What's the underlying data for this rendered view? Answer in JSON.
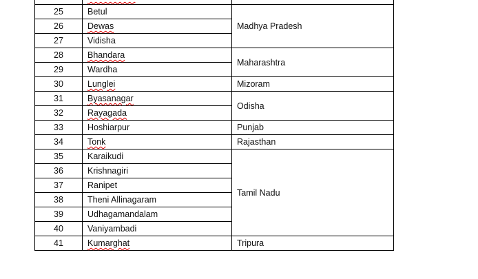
{
  "table": {
    "rows": [
      {
        "num": "",
        "district": "",
        "misspelled": true,
        "state": ""
      },
      {
        "num": "25",
        "district": "Betul",
        "misspelled": false,
        "state": "Madhya Pradesh",
        "span": 3
      },
      {
        "num": "26",
        "district": "Dewas",
        "misspelled": true
      },
      {
        "num": "27",
        "district": "Vidisha",
        "misspelled": false
      },
      {
        "num": "28",
        "district": "Bhandara",
        "misspelled": true,
        "state": "Maharashtra",
        "span": 2
      },
      {
        "num": "29",
        "district": "Wardha",
        "misspelled": false
      },
      {
        "num": "30",
        "district": "Lunglei",
        "misspelled": true,
        "state": "Mizoram",
        "span": 1
      },
      {
        "num": "31",
        "district": "Byasanagar",
        "misspelled": true,
        "state": "Odisha",
        "span": 2
      },
      {
        "num": "32",
        "district": "Rayagada",
        "misspelled": true
      },
      {
        "num": "33",
        "district": "Hoshiarpur",
        "misspelled": false,
        "state": "Punjab",
        "span": 1
      },
      {
        "num": "34",
        "district": "Tonk",
        "misspelled": true,
        "state": "Rajasthan",
        "span": 1
      },
      {
        "num": "35",
        "district": "Karaikudi",
        "misspelled": false,
        "state": "Tamil Nadu",
        "span": 6
      },
      {
        "num": "36",
        "district": "Krishnagiri",
        "misspelled": false
      },
      {
        "num": "37",
        "district": "Ranipet",
        "misspelled": false
      },
      {
        "num": "38",
        "district": "Theni Allinagaram",
        "misspelled": false
      },
      {
        "num": "39",
        "district": "Udhagamandalam",
        "misspelled": false
      },
      {
        "num": "40",
        "district": "Vaniyambadi",
        "misspelled": false
      },
      {
        "num": "41",
        "district": "Kumarghat",
        "misspelled": true,
        "state": "Tripura",
        "span": 1
      }
    ]
  }
}
